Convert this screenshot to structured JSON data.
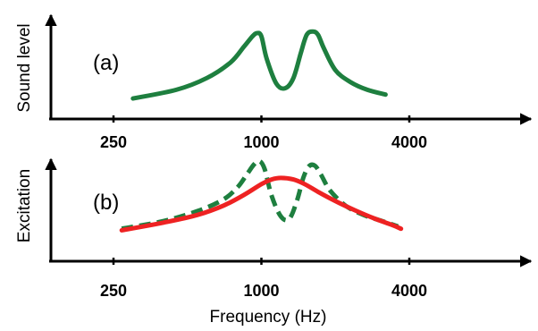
{
  "chart_data": [
    {
      "type": "line",
      "panel_label": "(a)",
      "ylabel": "Sound level",
      "x_scale": "log",
      "x_ticks": [
        250,
        1000,
        4000
      ],
      "x_tick_labels": [
        "250",
        "1000",
        "4000"
      ],
      "grid": false,
      "series": [
        {
          "color": "#1e7f3f",
          "style": "solid",
          "x": [
            300,
            450,
            600,
            750,
            850,
            920,
            960,
            1000,
            1050,
            1150,
            1250,
            1350,
            1450,
            1530,
            1620,
            1700,
            1800,
            2000,
            2300,
            2700,
            3200
          ],
          "y": [
            0.09,
            0.2,
            0.35,
            0.55,
            0.75,
            0.88,
            0.92,
            0.88,
            0.6,
            0.28,
            0.22,
            0.35,
            0.68,
            0.9,
            0.94,
            0.9,
            0.72,
            0.45,
            0.3,
            0.2,
            0.14
          ]
        }
      ]
    },
    {
      "type": "line",
      "panel_label": "(b)",
      "ylabel": "Excitation",
      "xlabel": "Frequency (Hz)",
      "x_scale": "log",
      "x_ticks": [
        250,
        1000,
        4000
      ],
      "x_tick_labels": [
        "250",
        "1000",
        "4000"
      ],
      "grid": false,
      "series": [
        {
          "color": "#1e7f3f",
          "style": "dashed",
          "x": [
            270,
            400,
            550,
            700,
            800,
            870,
            930,
            980,
            1030,
            1100,
            1200,
            1300,
            1400,
            1480,
            1560,
            1650,
            1750,
            1900,
            2200,
            2600,
            3100,
            3600
          ],
          "y": [
            0.12,
            0.22,
            0.35,
            0.5,
            0.66,
            0.82,
            0.95,
            1.0,
            0.9,
            0.55,
            0.28,
            0.25,
            0.5,
            0.78,
            0.93,
            0.94,
            0.82,
            0.62,
            0.42,
            0.3,
            0.22,
            0.15
          ]
        },
        {
          "color": "#ee2222",
          "style": "solid",
          "x": [
            270,
            400,
            550,
            700,
            850,
            1000,
            1100,
            1200,
            1350,
            1500,
            1700,
            2000,
            2400,
            2900,
            3400,
            3700
          ],
          "y": [
            0.1,
            0.2,
            0.3,
            0.42,
            0.56,
            0.7,
            0.76,
            0.78,
            0.76,
            0.7,
            0.6,
            0.48,
            0.36,
            0.25,
            0.17,
            0.12
          ]
        }
      ]
    }
  ]
}
